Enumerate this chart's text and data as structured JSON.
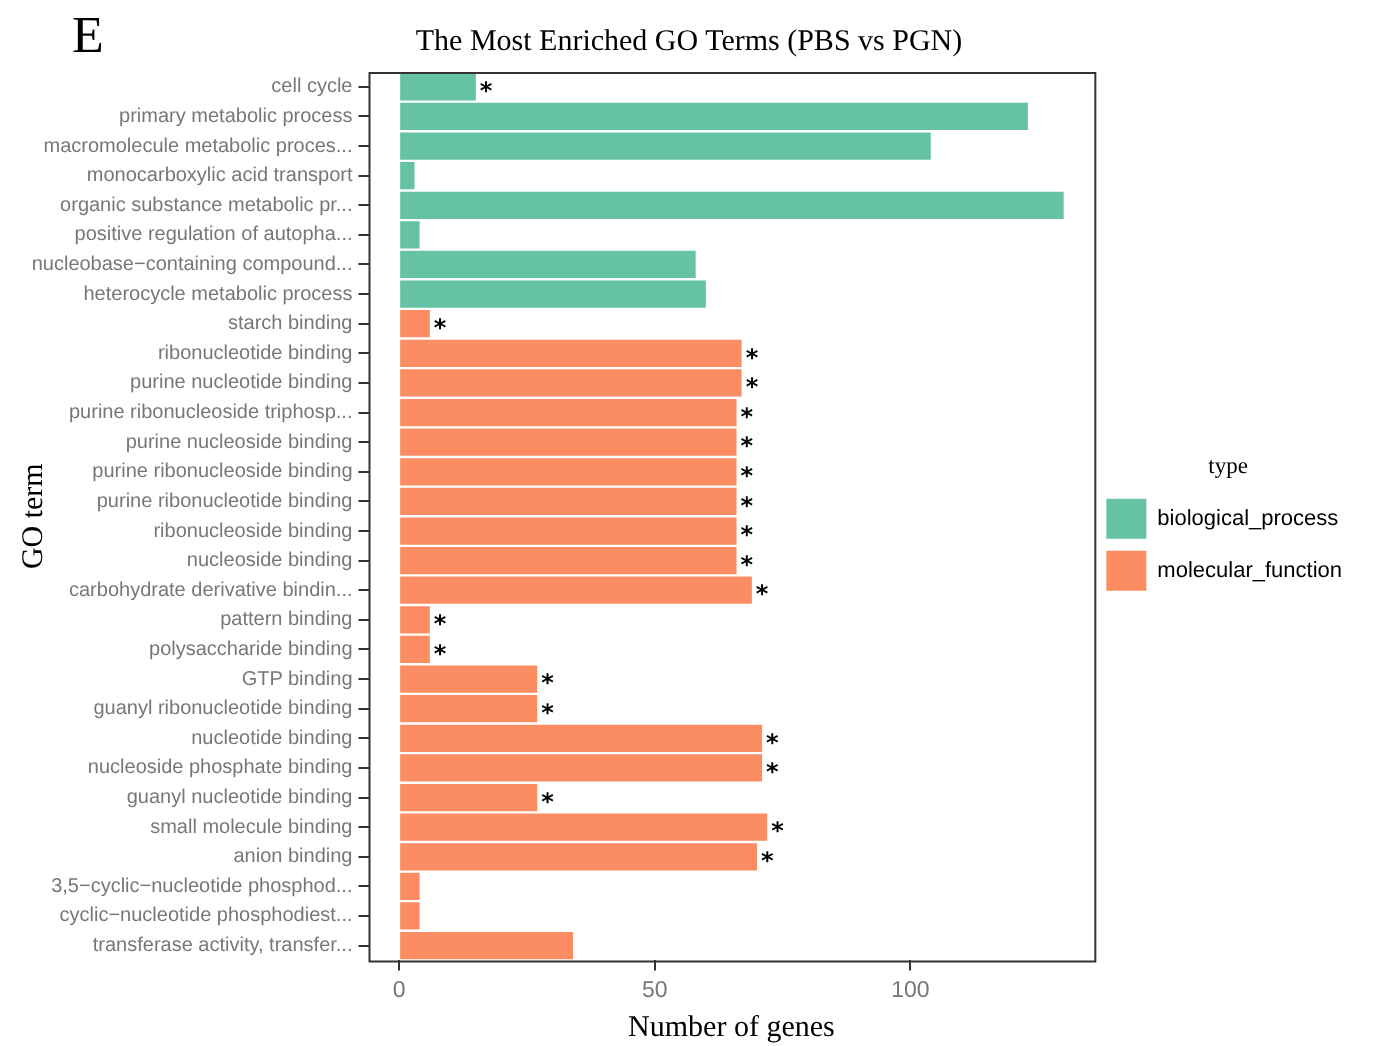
{
  "chart_data": {
    "type": "bar",
    "orientation": "horizontal",
    "title": "The Most Enriched GO Terms (PBS vs PGN)",
    "xlabel": "Number of genes",
    "ylabel": "GO term",
    "legend_title": "type",
    "legend": "right",
    "grid": false,
    "categories": [
      "cell cycle",
      "primary metabolic process",
      "macromolecule metabolic proces...",
      "monocarboxylic acid transport",
      "organic substance metabolic pr...",
      "positive regulation of autopha...",
      "nucleobase−containing compound...",
      "heterocycle metabolic process",
      "starch binding",
      "ribonucleotide binding",
      "purine nucleotide binding",
      "purine ribonucleoside triphosp...",
      "purine nucleoside binding",
      "purine ribonucleoside binding",
      "purine ribonucleotide binding",
      "ribonucleoside binding",
      "nucleoside binding",
      "carbohydrate derivative bindin...",
      "pattern binding",
      "polysaccharide binding",
      "GTP binding",
      "guanyl ribonucleotide binding",
      "nucleotide binding",
      "nucleoside phosphate binding",
      "guanyl nucleotide binding",
      "small molecule binding",
      "anion binding",
      "3,5−cyclic−nucleotide phosphod...",
      "cyclic−nucleotide phosphodiest...",
      "transferase activity, transfer..."
    ],
    "series": [
      {
        "name": "biological_process",
        "color": "#66c2a5",
        "values": [
          15,
          123,
          104,
          3,
          130,
          4,
          58,
          60,
          null,
          null,
          null,
          null,
          null,
          null,
          null,
          null,
          null,
          null,
          null,
          null,
          null,
          null,
          null,
          null,
          null,
          null,
          null,
          null,
          null,
          null
        ]
      },
      {
        "name": "molecular_function",
        "color": "#fc8d62",
        "values": [
          null,
          null,
          null,
          null,
          null,
          null,
          null,
          null,
          6,
          67,
          67,
          66,
          66,
          66,
          66,
          66,
          66,
          69,
          6,
          6,
          27,
          27,
          71,
          71,
          27,
          72,
          70,
          4,
          4,
          34
        ]
      }
    ],
    "xlim": [
      -6,
      136
    ],
    "xticks": [
      0,
      50,
      100
    ],
    "annotations": [
      "E",
      {
        "text": "*",
        "x": 15,
        "y": "cell cycle"
      },
      {
        "text": "*",
        "x": 6,
        "y": "starch binding"
      },
      {
        "text": "*",
        "x": 67,
        "y": "ribonucleotide binding"
      },
      {
        "text": "*",
        "x": 67,
        "y": "purine nucleotide binding"
      },
      {
        "text": "*",
        "x": 66,
        "y": "purine ribonucleoside triphosp..."
      },
      {
        "text": "*",
        "x": 66,
        "y": "purine nucleoside binding"
      },
      {
        "text": "*",
        "x": 66,
        "y": "purine ribonucleoside binding"
      },
      {
        "text": "*",
        "x": 66,
        "y": "purine ribonucleotide binding"
      },
      {
        "text": "*",
        "x": 66,
        "y": "ribonucleoside binding"
      },
      {
        "text": "*",
        "x": 66,
        "y": "nucleoside binding"
      },
      {
        "text": "*",
        "x": 69,
        "y": "carbohydrate derivative bindin..."
      },
      {
        "text": "*",
        "x": 6,
        "y": "pattern binding"
      },
      {
        "text": "*",
        "x": 6,
        "y": "polysaccharide binding"
      },
      {
        "text": "*",
        "x": 27,
        "y": "GTP binding"
      },
      {
        "text": "*",
        "x": 27,
        "y": "guanyl ribonucleotide binding"
      },
      {
        "text": "*",
        "x": 71,
        "y": "nucleotide binding"
      },
      {
        "text": "*",
        "x": 71,
        "y": "nucleoside phosphate binding"
      },
      {
        "text": "*",
        "x": 27,
        "y": "guanyl nucleotide binding"
      },
      {
        "text": "*",
        "x": 72,
        "y": "small molecule binding"
      },
      {
        "text": "*",
        "x": 70,
        "y": "anion binding"
      }
    ]
  }
}
